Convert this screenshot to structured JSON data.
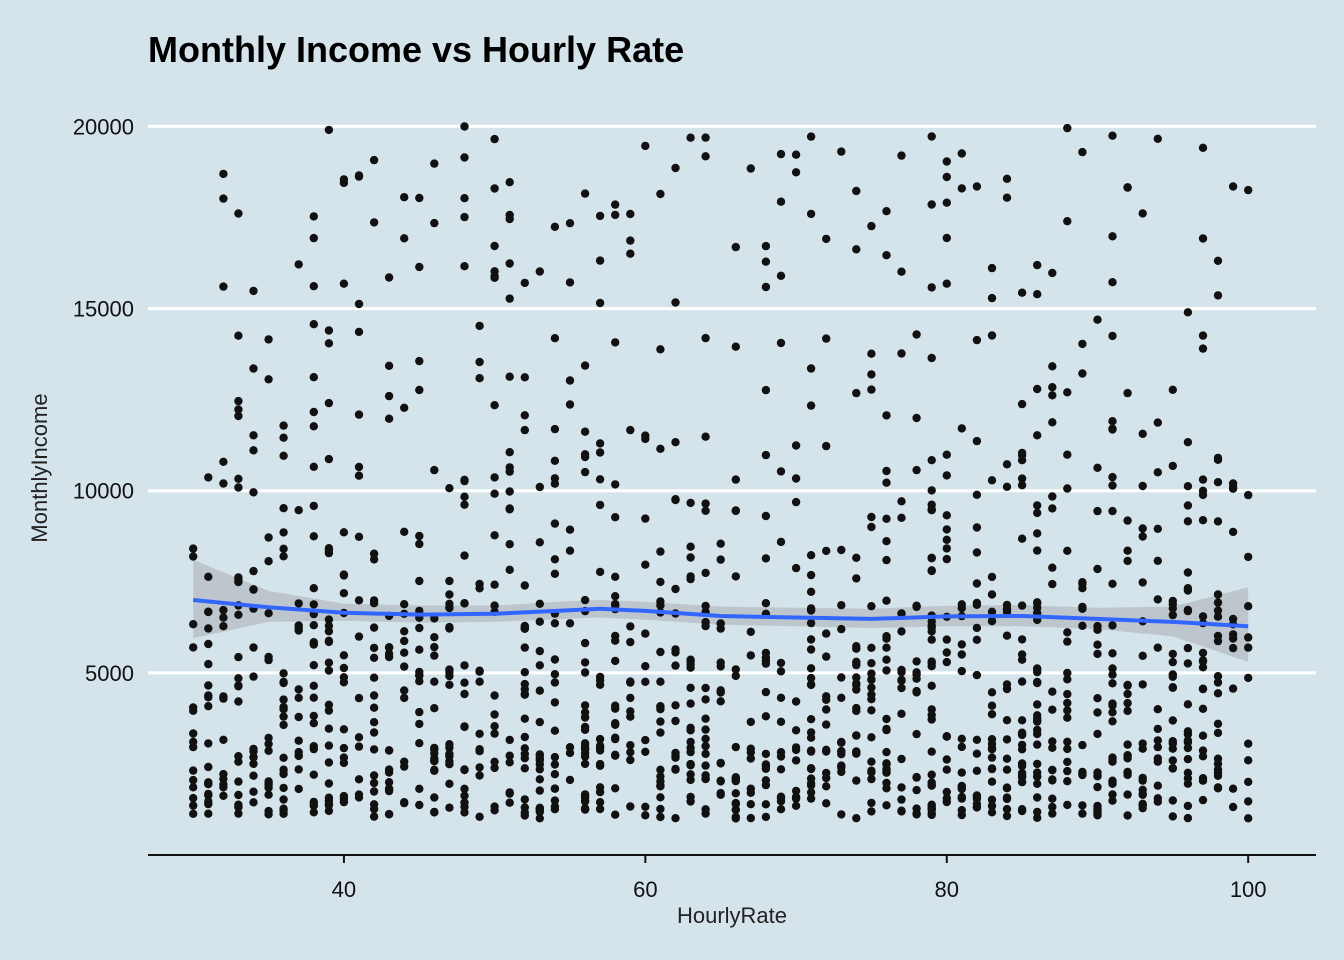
{
  "chart_data": {
    "type": "scatter",
    "title": "Monthly Income vs Hourly Rate",
    "xlabel": "HourlyRate",
    "ylabel": "MonthlyIncome",
    "xlim": [
      27,
      104.5
    ],
    "ylim": [
      0,
      21000
    ],
    "x_ticks": [
      40,
      60,
      80,
      100
    ],
    "y_ticks": [
      5000,
      10000,
      15000,
      20000
    ],
    "grid": "horizontal-major",
    "colors": {
      "background": "#d5e4eb",
      "grid": "#ffffff",
      "points": "#111111",
      "smooth": "#3366ff",
      "band": "#b8c1c8"
    },
    "point_cloud": {
      "x_range": [
        30,
        100
      ],
      "n_points": 1470,
      "distribution_note_bands": [
        {
          "y_min": 1000,
          "y_max": 3000,
          "share": 0.34
        },
        {
          "y_min": 3000,
          "y_max": 7000,
          "share": 0.36
        },
        {
          "y_min": 7000,
          "y_max": 11000,
          "share": 0.16
        },
        {
          "y_min": 11000,
          "y_max": 20000,
          "share": 0.14
        }
      ]
    },
    "smooth": {
      "x": [
        30,
        35,
        40,
        45,
        50,
        55,
        57,
        60,
        65,
        70,
        75,
        80,
        85,
        90,
        95,
        100
      ],
      "y": [
        7000,
        6800,
        6650,
        6600,
        6620,
        6720,
        6760,
        6700,
        6560,
        6520,
        6480,
        6550,
        6560,
        6480,
        6400,
        6280
      ],
      "ci_upper": [
        8100,
        7250,
        6900,
        6850,
        6850,
        6970,
        7000,
        6950,
        6820,
        6790,
        6760,
        6840,
        6860,
        6790,
        6820,
        7350
      ],
      "ci_lower": [
        5950,
        6400,
        6430,
        6380,
        6400,
        6490,
        6520,
        6460,
        6320,
        6280,
        6230,
        6280,
        6280,
        6200,
        6000,
        5300
      ]
    }
  }
}
